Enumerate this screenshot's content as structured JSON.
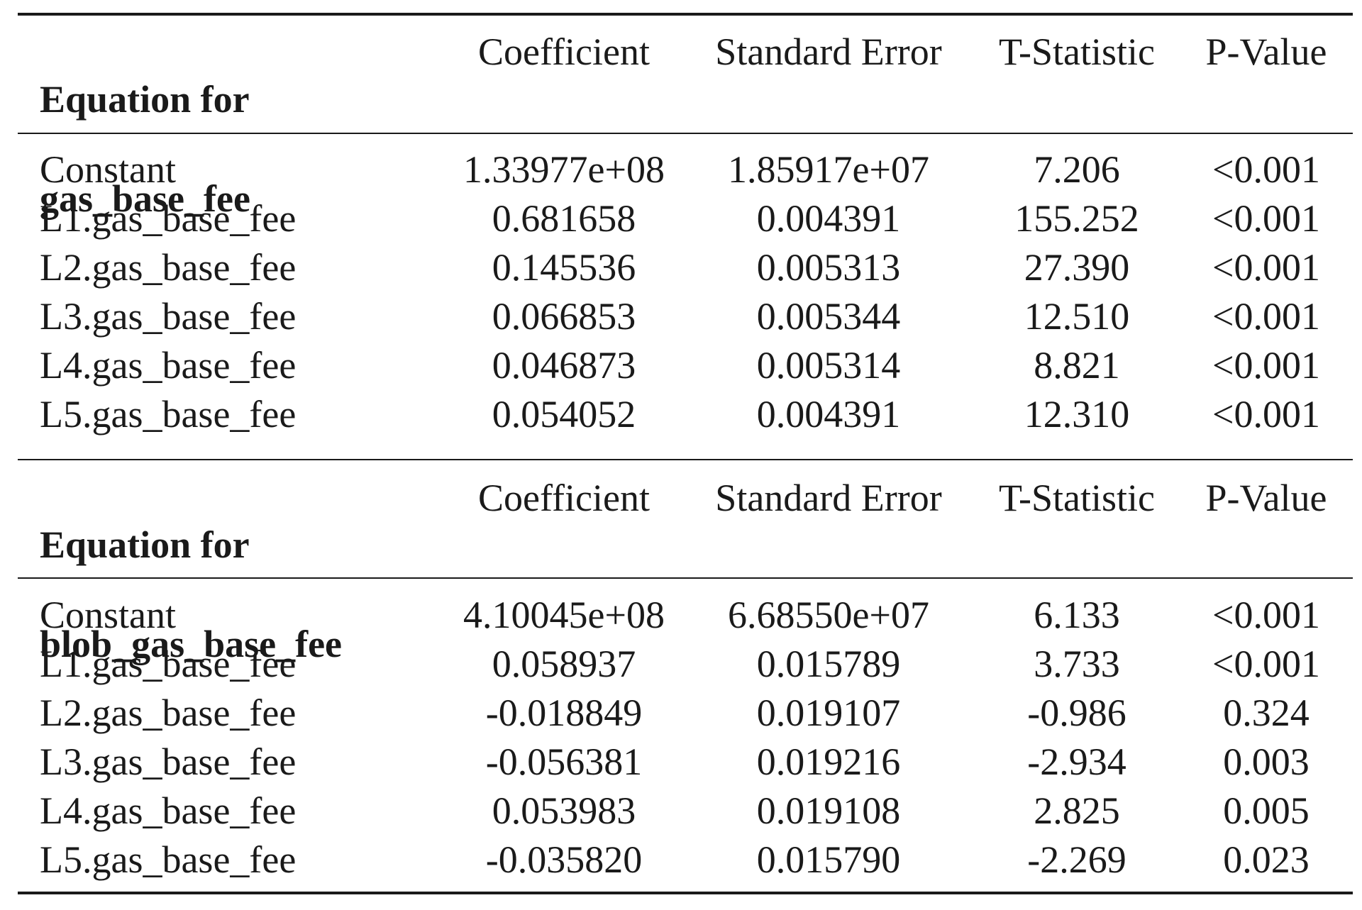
{
  "tables": [
    {
      "equation_title_line1": "Equation for",
      "equation_title_line2": "gas_base_fee",
      "columns": [
        "Coefficient",
        "Standard Error",
        "T-Statistic",
        "P-Value"
      ],
      "rows": [
        {
          "variable": "Constant",
          "coefficient": "1.33977e+08",
          "std_error": "1.85917e+07",
          "t_stat": "7.206",
          "p_value": "<0.001"
        },
        {
          "variable": "L1.gas_base_fee",
          "coefficient": "0.681658",
          "std_error": "0.004391",
          "t_stat": "155.252",
          "p_value": "<0.001"
        },
        {
          "variable": "L2.gas_base_fee",
          "coefficient": "0.145536",
          "std_error": "0.005313",
          "t_stat": "27.390",
          "p_value": "<0.001"
        },
        {
          "variable": "L3.gas_base_fee",
          "coefficient": "0.066853",
          "std_error": "0.005344",
          "t_stat": "12.510",
          "p_value": "<0.001"
        },
        {
          "variable": "L4.gas_base_fee",
          "coefficient": "0.046873",
          "std_error": "0.005314",
          "t_stat": "8.821",
          "p_value": "<0.001"
        },
        {
          "variable": "L5.gas_base_fee",
          "coefficient": "0.054052",
          "std_error": "0.004391",
          "t_stat": "12.310",
          "p_value": "<0.001"
        }
      ]
    },
    {
      "equation_title_line1": "Equation for",
      "equation_title_line2": "blob_gas_base_fee",
      "columns": [
        "Coefficient",
        "Standard Error",
        "T-Statistic",
        "P-Value"
      ],
      "rows": [
        {
          "variable": "Constant",
          "coefficient": "4.10045e+08",
          "std_error": "6.68550e+07",
          "t_stat": "6.133",
          "p_value": "<0.001"
        },
        {
          "variable": "L1.gas_base_fee",
          "coefficient": "0.058937",
          "std_error": "0.015789",
          "t_stat": "3.733",
          "p_value": "<0.001"
        },
        {
          "variable": "L2.gas_base_fee",
          "coefficient": "-0.018849",
          "std_error": "0.019107",
          "t_stat": "-0.986",
          "p_value": "0.324"
        },
        {
          "variable": "L3.gas_base_fee",
          "coefficient": "-0.056381",
          "std_error": "0.019216",
          "t_stat": "-2.934",
          "p_value": "0.003"
        },
        {
          "variable": "L4.gas_base_fee",
          "coefficient": "0.053983",
          "std_error": "0.019108",
          "t_stat": "2.825",
          "p_value": "0.005"
        },
        {
          "variable": "L5.gas_base_fee",
          "coefficient": "-0.035820",
          "std_error": "0.015790",
          "t_stat": "-2.269",
          "p_value": "0.023"
        }
      ]
    }
  ]
}
